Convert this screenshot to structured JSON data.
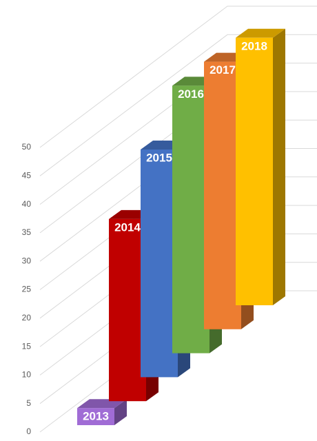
{
  "chart_data": {
    "type": "bar3d",
    "categories": [
      "2013",
      "2014",
      "2015",
      "2016",
      "2017",
      "2018"
    ],
    "values": [
      3,
      32,
      40,
      47,
      47,
      47
    ],
    "colors": [
      "#a06cd5",
      "#c00000",
      "#4472c4",
      "#70ad47",
      "#ed7d31",
      "#ffc000"
    ],
    "ylim": [
      0,
      50
    ],
    "yticks": [
      0,
      5,
      10,
      15,
      20,
      25,
      30,
      35,
      40,
      45,
      50
    ],
    "grid": true
  }
}
